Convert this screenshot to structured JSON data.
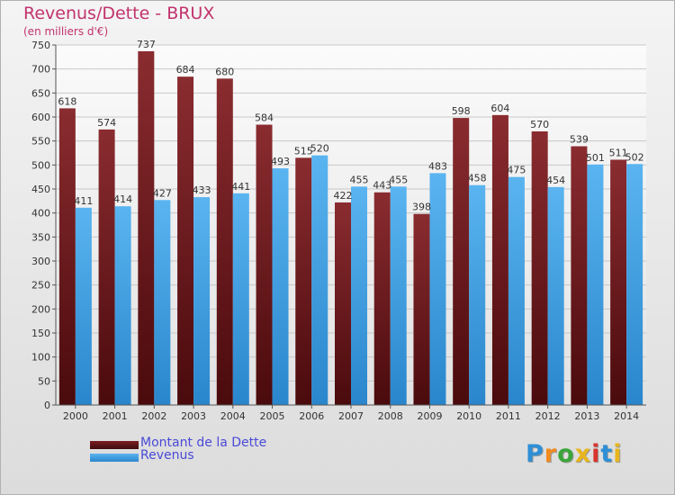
{
  "title": "Revenus/Dette - BRUX",
  "subtitle": "(en milliers d'€)",
  "logo": {
    "text": "Proxiti",
    "colors": [
      "#2e8fd6",
      "#f28a1d",
      "#3aa53a",
      "#e8b51c",
      "#d8352e",
      "#2e8fd6",
      "#e8b51c"
    ]
  },
  "chart_data": {
    "type": "bar",
    "categories": [
      "2000",
      "2001",
      "2002",
      "2003",
      "2004",
      "2005",
      "2006",
      "2007",
      "2008",
      "2009",
      "2010",
      "2011",
      "2012",
      "2013",
      "2014"
    ],
    "series": [
      {
        "name": "Montant de la Dette",
        "color": "#7a1e22",
        "values": [
          618,
          574,
          737,
          684,
          680,
          584,
          515,
          422,
          443,
          398,
          598,
          604,
          570,
          539,
          511
        ]
      },
      {
        "name": "Revenus",
        "color": "#4aa6e8",
        "values": [
          411,
          414,
          427,
          433,
          441,
          493,
          520,
          455,
          455,
          483,
          458,
          475,
          454,
          501,
          502
        ]
      }
    ],
    "ylim": [
      0,
      750
    ],
    "yticks": [
      0,
      50,
      100,
      150,
      200,
      250,
      300,
      350,
      400,
      450,
      500,
      550,
      600,
      650,
      700,
      750
    ],
    "grid": true,
    "legend": "bottom-left"
  }
}
